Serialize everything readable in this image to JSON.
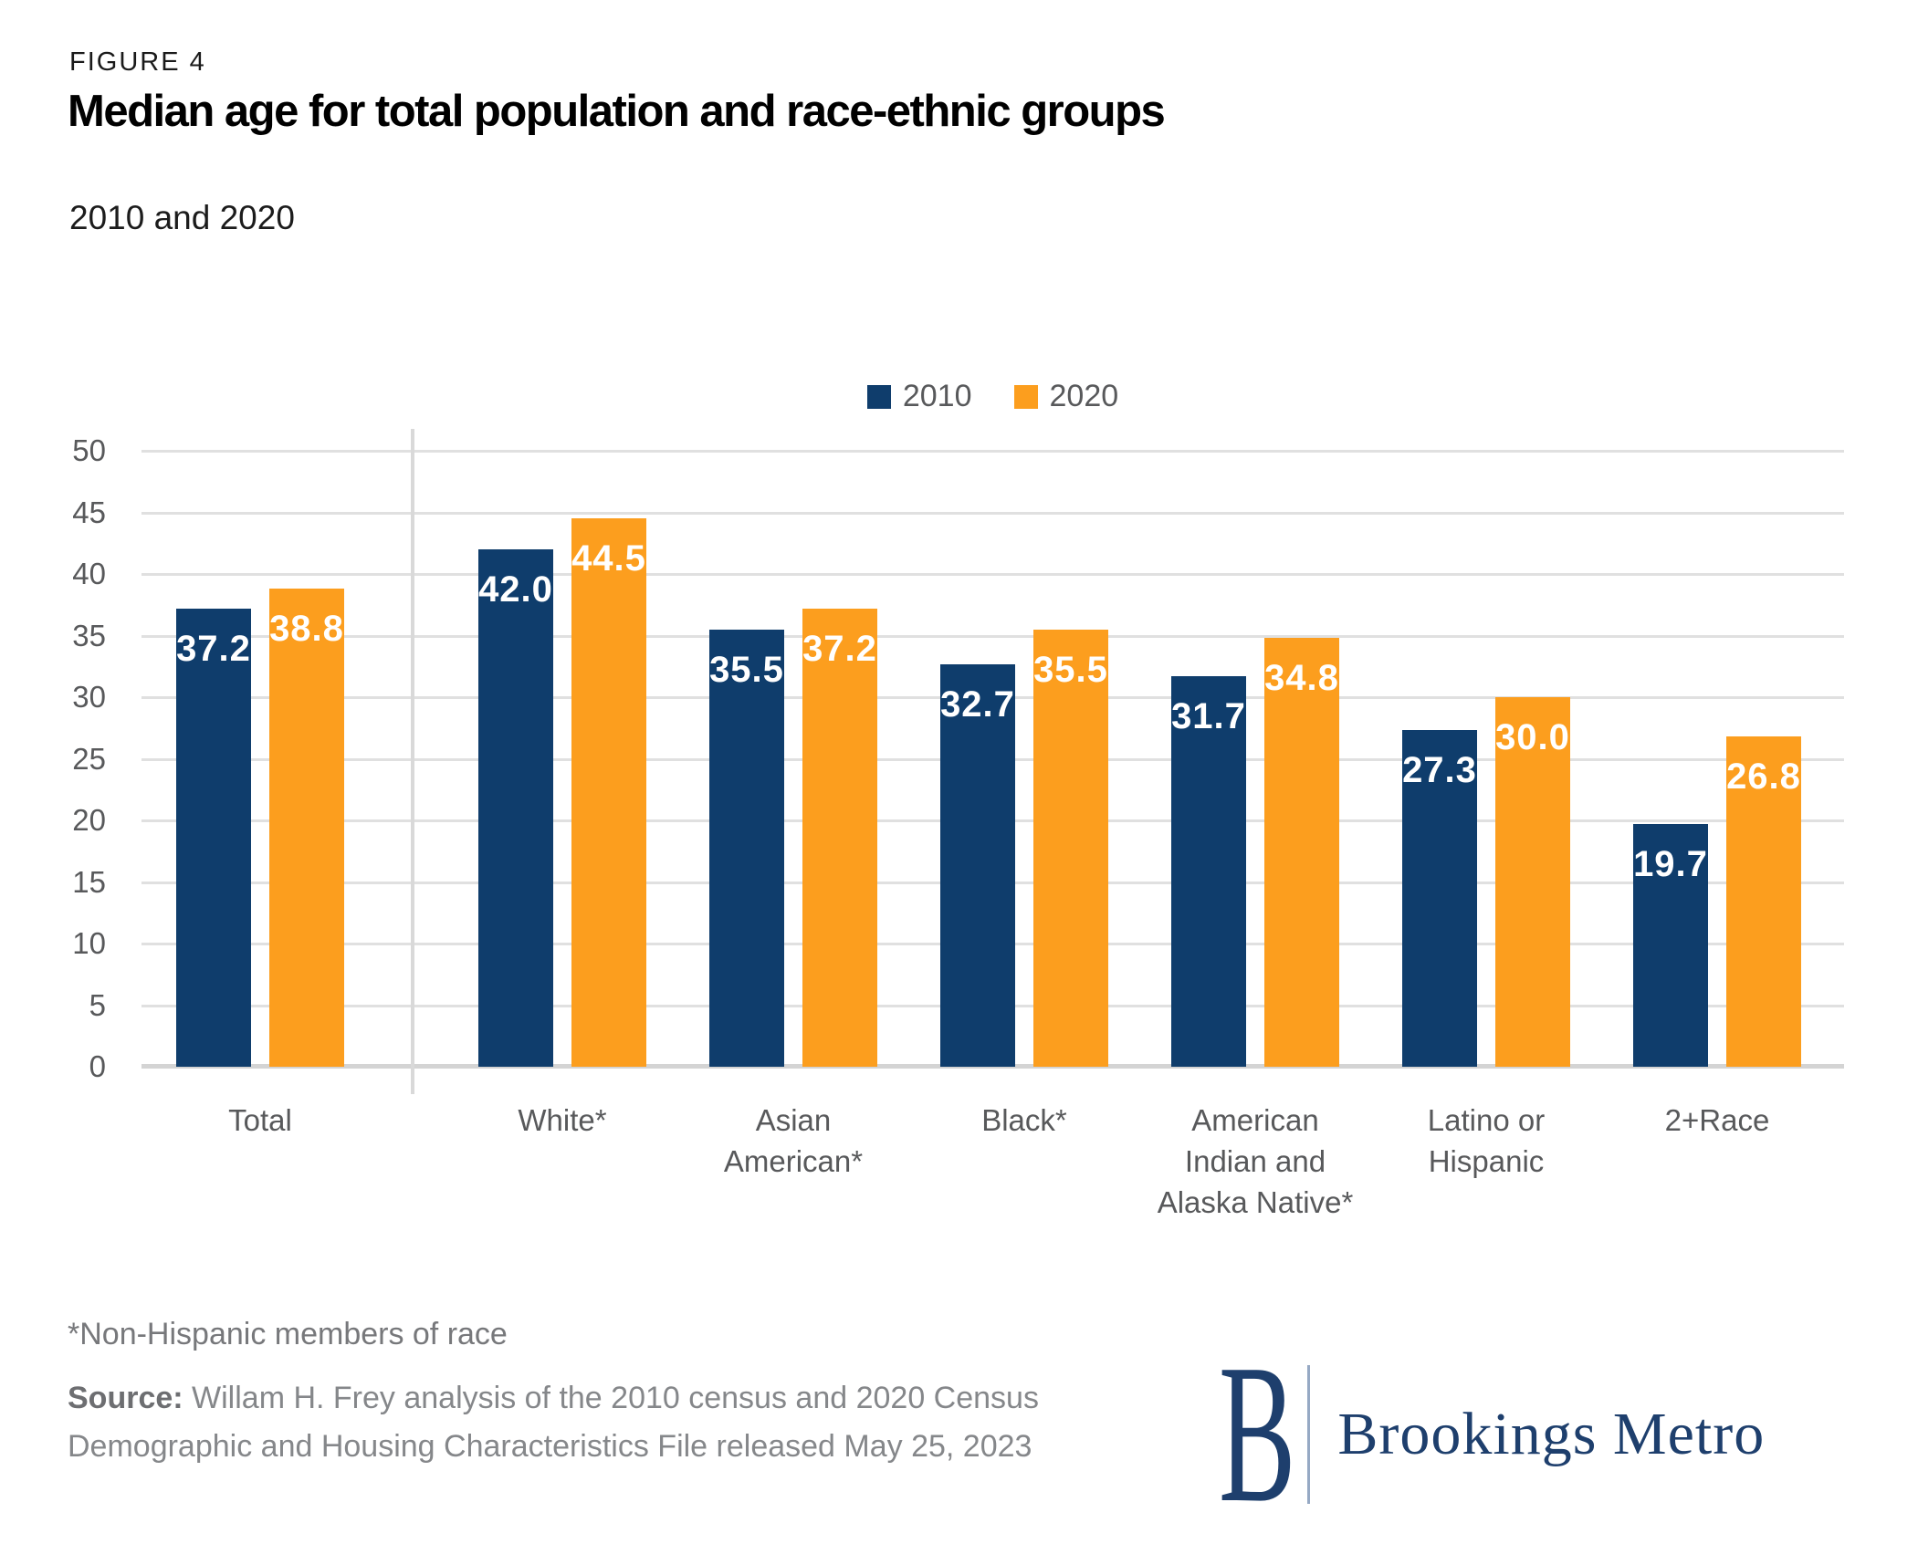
{
  "figure_label": "FIGURE 4",
  "title": "Median age for total population and race-ethnic groups",
  "subtitle": "2010 and 2020",
  "legend": [
    {
      "label": "2010",
      "color": "#0f3d6c"
    },
    {
      "label": "2020",
      "color": "#fc9e1e"
    }
  ],
  "chart_data": {
    "type": "bar",
    "categories": [
      "Total",
      "White*",
      "Asian\nAmerican*",
      "Black*",
      "American\nIndian and\nAlaska Native*",
      "Latino or\nHispanic",
      "2+Race"
    ],
    "series": [
      {
        "name": "2010",
        "color": "#0f3d6c",
        "values": [
          37.2,
          42.0,
          35.5,
          32.7,
          31.7,
          27.3,
          19.7
        ]
      },
      {
        "name": "2020",
        "color": "#fc9e1e",
        "values": [
          38.8,
          44.5,
          37.2,
          35.5,
          34.8,
          30.0,
          26.8
        ]
      }
    ],
    "title": "Median age for total population and race-ethnic groups",
    "subtitle": "2010 and 2020",
    "xlabel": "",
    "ylabel": "",
    "ylim": [
      0,
      50
    ],
    "ytick_step": 5,
    "grid": "horizontal",
    "value_labels": "inside-top",
    "legend_position": "top-center",
    "separator_after_category": "Total"
  },
  "footnote": "*Non-Hispanic members of race",
  "source": {
    "label": "Source:",
    "text": " Willam H. Frey analysis of the 2010 census and 2020 Census Demographic and Housing Characteristics File released May 25, 2023"
  },
  "logo": {
    "monogram": "B",
    "name": "Brookings Metro",
    "color": "#1e3f6d"
  }
}
